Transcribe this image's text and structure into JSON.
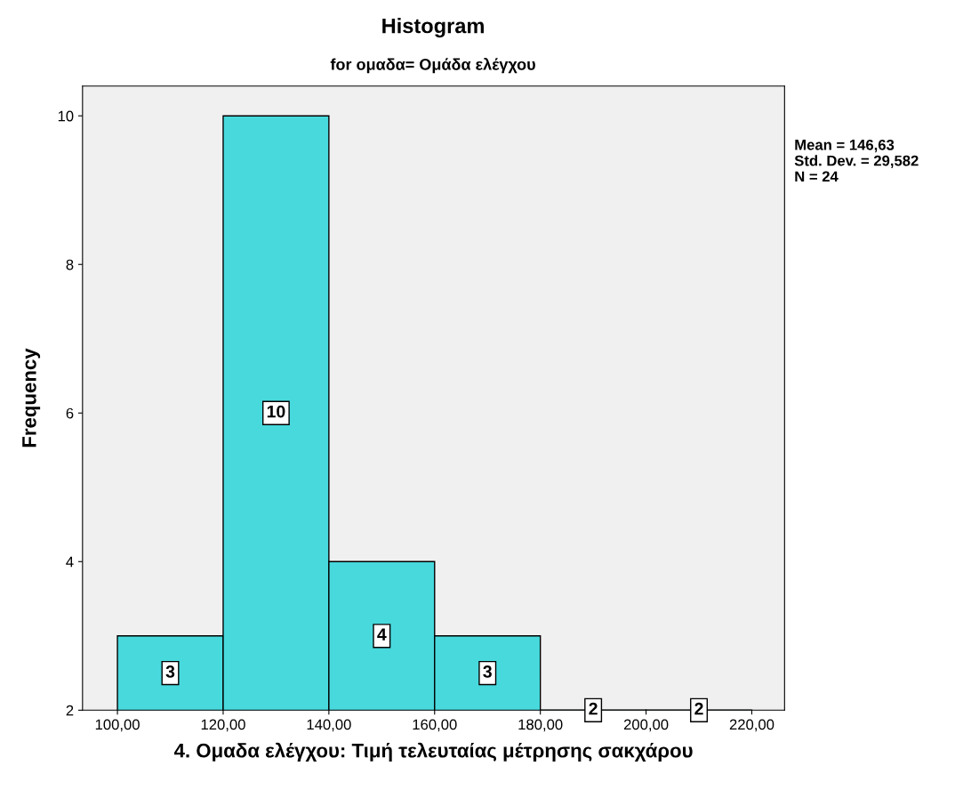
{
  "chart_data": {
    "type": "histogram",
    "title": "Histogram",
    "subtitle": "for ομαδα= Ομάδα ελέγχου",
    "xlabel": "4. Ομαδα ελέγχου: Τιμή τελευταίας μέτρησης σακχάρου",
    "ylabel": "Frequency",
    "bins": [
      100,
      120,
      140,
      160,
      180,
      200,
      220
    ],
    "values": [
      3,
      10,
      4,
      3,
      2,
      2
    ],
    "color": "#48d9dd",
    "xlim": [
      93.4,
      226.2
    ],
    "ylim": [
      2,
      10.4
    ],
    "xticks": [
      {
        "value": 100,
        "label": "100,00"
      },
      {
        "value": 120,
        "label": "120,00"
      },
      {
        "value": 140,
        "label": "140,00"
      },
      {
        "value": 160,
        "label": "160,00"
      },
      {
        "value": 180,
        "label": "180,00"
      },
      {
        "value": 200,
        "label": "200,00"
      },
      {
        "value": 220,
        "label": "220,00"
      }
    ],
    "yticks": [
      2,
      4,
      6,
      8,
      10
    ],
    "data_labels": true,
    "grid": false,
    "annotations": [
      "Mean = 146,63",
      "Std. Dev. = 29,582",
      "N = 24"
    ]
  }
}
